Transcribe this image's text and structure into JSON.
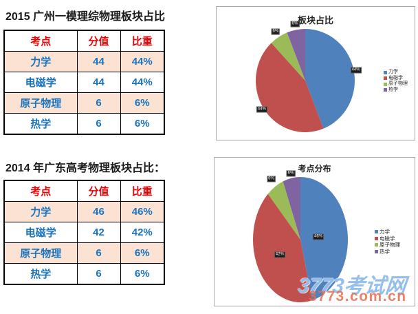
{
  "sections": [
    {
      "title": "2015 广州一模理综物理板块占比",
      "table": {
        "headers": [
          "考点",
          "分值",
          "比重"
        ],
        "rows": [
          [
            "力学",
            "44",
            "44%"
          ],
          [
            "电磁学",
            "44",
            "44%"
          ],
          [
            "原子物理",
            "6",
            "6%"
          ],
          [
            "热学",
            "6",
            "6%"
          ]
        ]
      }
    },
    {
      "title": "2014 年广东高考物理板块占比：",
      "table": {
        "headers": [
          "考点",
          "分值",
          "比重"
        ],
        "rows": [
          [
            "力学",
            "46",
            "46%"
          ],
          [
            "电磁学",
            "42",
            "42%"
          ],
          [
            "原子物理",
            "6",
            "6%"
          ],
          [
            "热学",
            "6",
            "6%"
          ]
        ]
      }
    }
  ],
  "chart_data": [
    {
      "type": "pie",
      "title": "板块占比",
      "categories": [
        "力学",
        "电磁学",
        "原子物理",
        "热学"
      ],
      "values": [
        44,
        44,
        6,
        6
      ],
      "labels": [
        "44%",
        "44%",
        "6%",
        "6%"
      ],
      "colors": [
        "#4F81BD",
        "#C0504D",
        "#9BBB59",
        "#8064A2"
      ],
      "legend_position": "right",
      "label_factors": [
        1.04,
        1.04,
        1.12,
        1.12
      ]
    },
    {
      "type": "pie",
      "title": "考点分布",
      "categories": [
        "力学",
        "电磁学",
        "原子物理",
        "热学"
      ],
      "values": [
        46,
        42,
        6,
        6
      ],
      "labels": [
        "46%",
        "42%",
        "6%",
        "6%"
      ],
      "colors": [
        "#4F81BD",
        "#C0504D",
        "#9BBB59",
        "#8064A2"
      ],
      "legend_position": "right",
      "label_factors": [
        0.38,
        0.5,
        1.15,
        1.08
      ]
    }
  ],
  "watermark": {
    "line1": "3773考试网",
    "line2": "3773.com.cn",
    "color1": "#82b4e8",
    "color2": "#e96c4e"
  },
  "colors": {
    "table_header_text": "#ee0000",
    "table_cell_text": "#1a73bc",
    "table_alt_row_bg": "#fbe2d3",
    "table_border": "#000000",
    "chart_frame_border": "#a9a9a9"
  }
}
